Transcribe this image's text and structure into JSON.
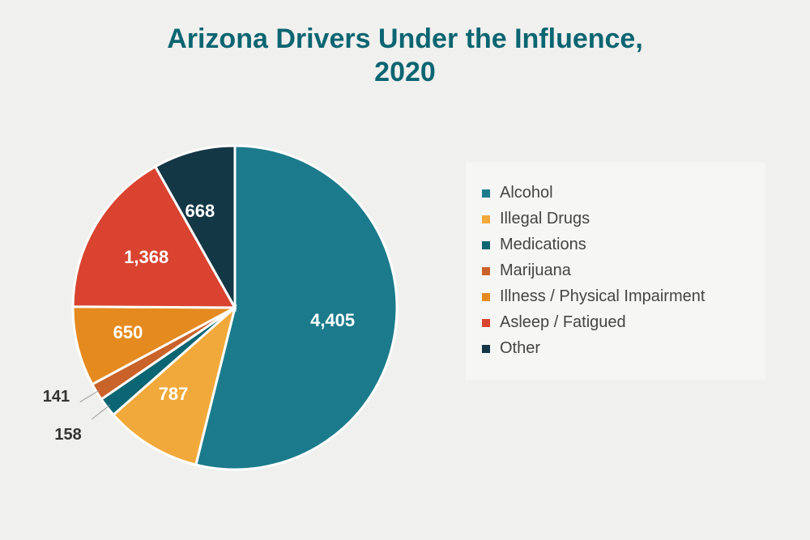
{
  "title": {
    "line1": "Arizona Drivers Under the Influence,",
    "line2": "2020",
    "color": "#0b6572",
    "fontsize": 34
  },
  "chart": {
    "type": "pie",
    "background_color": "#f0f0ee",
    "slice_gap_color": "#ffffff",
    "slice_gap_width": 3,
    "radius": 200,
    "start_angle": -90,
    "label_fontsize": 22,
    "small_label_fontsize": 20,
    "slices": [
      {
        "name": "Alcohol",
        "value": 4405,
        "label": "4,405",
        "color": "#1b7b8c",
        "label_color": "#ffffff"
      },
      {
        "name": "Illegal Drugs",
        "value": 787,
        "label": "787",
        "color": "#f2a93b",
        "label_color": "#ffffff"
      },
      {
        "name": "Medications",
        "value": 158,
        "label": "158",
        "color": "#0b6572",
        "label_color": "#333333",
        "outside": true
      },
      {
        "name": "Marijuana",
        "value": 141,
        "label": "141",
        "color": "#c9632a",
        "label_color": "#333333",
        "outside": true
      },
      {
        "name": "Illness / Physical Impairment",
        "value": 650,
        "label": "650",
        "color": "#e58a1f",
        "label_color": "#ffffff"
      },
      {
        "name": "Asleep / Fatigued",
        "value": 1368,
        "label": "1,368",
        "color": "#d94330",
        "label_color": "#ffffff"
      },
      {
        "name": "Other",
        "value": 668,
        "label": "668",
        "color": "#143746",
        "label_color": "#ffffff"
      }
    ]
  },
  "legend": {
    "background_color": "#f6f6f4",
    "text_color": "#444444",
    "marker_shape": "square",
    "fontsize": 20
  }
}
